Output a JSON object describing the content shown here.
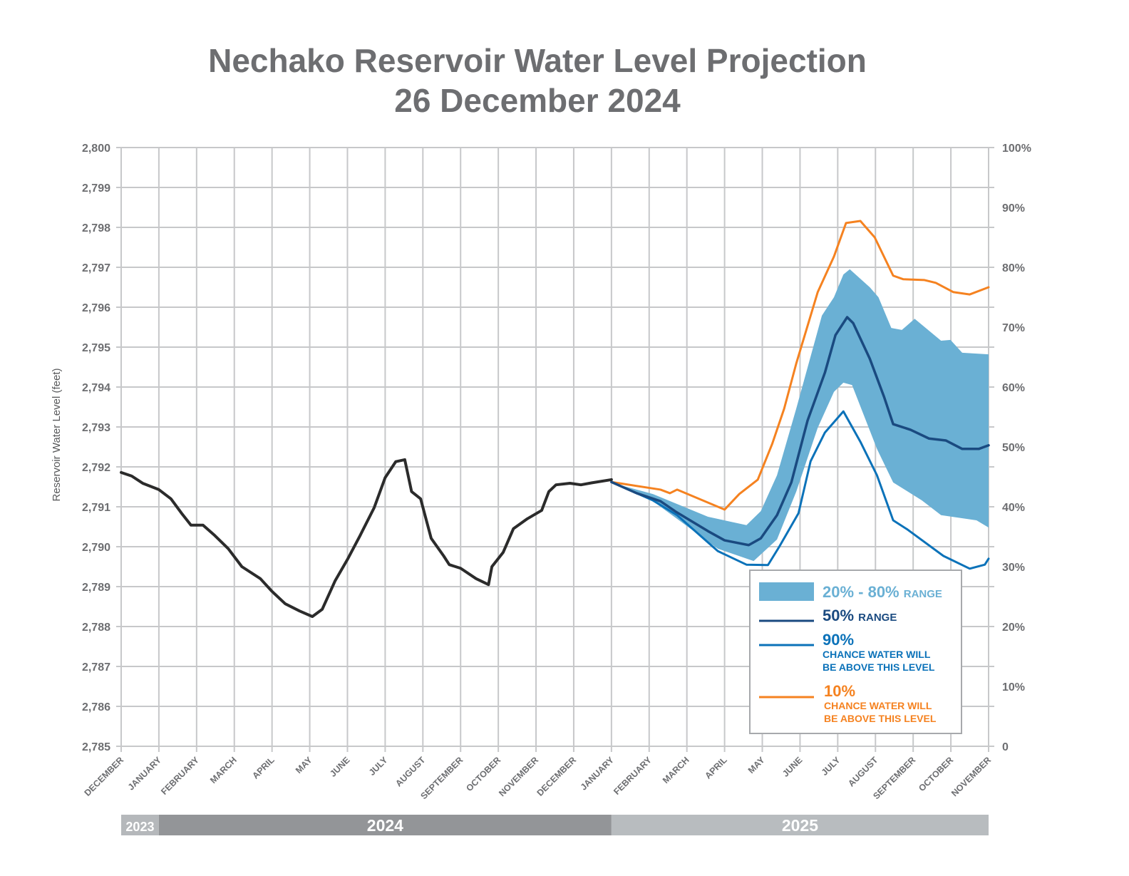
{
  "chart_data": {
    "type": "line",
    "title": "Nechako Reservoir Water Level Projection",
    "subtitle": "26 December 2024",
    "ylabel": "Reservoir Water Level (feet)",
    "ylim": [
      2785,
      2800
    ],
    "y_ticks": [
      "2,785",
      "2,786",
      "2,787",
      "2,788",
      "2,789",
      "2,790",
      "2,791",
      "2,792",
      "2,793",
      "2,794",
      "2,795",
      "2,796",
      "2,797",
      "2,798",
      "2,799",
      "2,800"
    ],
    "y2lim": [
      0,
      100
    ],
    "y2_ticks": [
      "0",
      "10%",
      "20%",
      "30%",
      "40%",
      "50%",
      "60%",
      "70%",
      "80%",
      "90%",
      "100%"
    ],
    "x_ticks": [
      "DECEMBER",
      "JANUARY",
      "FEBRUARY",
      "MARCH",
      "APRIL",
      "MAY",
      "JUNE",
      "JULY",
      "AUGUST",
      "SEPTEMBER",
      "OCTOBER",
      "NOVEMBER",
      "DECEMBER",
      "JANUARY",
      "FEBRUARY",
      "MARCH",
      "APRIL",
      "MAY",
      "JUNE",
      "JULY",
      "AUGUST",
      "SEPTEMBER",
      "OCTOBER",
      "NOVEMBER"
    ],
    "x_note": "x values are month positions: 0 = start of December 2023, 23 = start of November 2025",
    "years": [
      {
        "label": "2023",
        "from": 0,
        "to": 1,
        "color": "#b5b8bb"
      },
      {
        "label": "2024",
        "from": 1,
        "to": 13,
        "color": "#939598"
      },
      {
        "label": "2025",
        "from": 13,
        "to": 23,
        "color": "#b8bcbf"
      }
    ],
    "grid": true,
    "legend_placement": "bottom-right",
    "legend": [
      {
        "key": "band",
        "label": "20% - 80%",
        "suffix": "RANGE",
        "color": "#6ab0d4"
      },
      {
        "key": "p50",
        "label": "50%",
        "suffix": "RANGE",
        "color": "#1a4a80"
      },
      {
        "key": "p90",
        "label": "90%",
        "line1": "CHANCE WATER WILL",
        "line2": "BE ABOVE THIS LEVEL",
        "color": "#0b72b9"
      },
      {
        "key": "p10",
        "label": "10%",
        "line1": "CHANCE WATER WILL",
        "line2": "BE ABOVE THIS LEVEL",
        "color": "#f58220"
      }
    ],
    "series": [
      {
        "key": "historical",
        "color": "#2b2b2b",
        "x": [
          0,
          0.28,
          0.57,
          1,
          1.32,
          1.6,
          1.85,
          2.17,
          2.46,
          2.84,
          3.2,
          3.69,
          4,
          4.35,
          4.73,
          5.07,
          5.33,
          5.67,
          6,
          6.33,
          6.71,
          7,
          7.28,
          7.52,
          7.7,
          7.94,
          8.22,
          8.55,
          8.7,
          9,
          9.41,
          9.74,
          9.83,
          10.13,
          10.4,
          10.77,
          11.15,
          11.34,
          11.53,
          11.9,
          12.19,
          12.48,
          13
        ],
        "y": [
          2791.86,
          2791.77,
          2791.59,
          2791.43,
          2791.2,
          2790.84,
          2790.54,
          2790.54,
          2790.3,
          2789.95,
          2789.5,
          2789.2,
          2788.88,
          2788.57,
          2788.39,
          2788.25,
          2788.43,
          2789.14,
          2789.68,
          2790.27,
          2790.98,
          2791.73,
          2792.13,
          2792.18,
          2791.38,
          2791.2,
          2790.21,
          2789.77,
          2789.55,
          2789.46,
          2789.2,
          2789.05,
          2789.5,
          2789.86,
          2790.45,
          2790.7,
          2790.91,
          2791.38,
          2791.55,
          2791.59,
          2791.55,
          2791.6,
          2791.68
        ]
      },
      {
        "key": "band_upper",
        "x": [
          13,
          14.1,
          15.56,
          16.58,
          16.96,
          17.39,
          17.9,
          18.58,
          18.9,
          19.15,
          19.32,
          19.85,
          20.08,
          20.42,
          20.7,
          21.04,
          21.74,
          21.99,
          22.3,
          23
        ],
        "y": [
          2791.6,
          2791.32,
          2790.75,
          2790.54,
          2790.89,
          2791.79,
          2793.46,
          2795.79,
          2796.25,
          2796.82,
          2796.95,
          2796.5,
          2796.25,
          2795.48,
          2795.43,
          2795.71,
          2795.16,
          2795.18,
          2794.86,
          2794.82
        ]
      },
      {
        "key": "band_lower",
        "x": [
          13,
          14.1,
          15.82,
          16.77,
          17.39,
          17.9,
          18.47,
          18.9,
          19.15,
          19.38,
          20.04,
          20.47,
          21.23,
          21.74,
          22.68,
          23
        ],
        "y": [
          2791.6,
          2791.14,
          2789.95,
          2789.64,
          2790.18,
          2791.38,
          2792.98,
          2793.88,
          2794.11,
          2794.05,
          2792.45,
          2791.61,
          2791.16,
          2790.79,
          2790.66,
          2790.48
        ]
      },
      {
        "key": "p50",
        "color": "#1a4a80",
        "x": [
          13,
          13.67,
          14.3,
          14.7,
          15.56,
          16,
          16.64,
          16.96,
          17.39,
          17.77,
          18.2,
          18.66,
          18.94,
          19.25,
          19.41,
          19.85,
          20.23,
          20.47,
          20.93,
          21.42,
          21.87,
          22.3,
          22.74,
          23
        ],
        "y": [
          2791.62,
          2791.34,
          2791.14,
          2790.88,
          2790.39,
          2790.16,
          2790.04,
          2790.21,
          2790.79,
          2791.61,
          2793.16,
          2794.36,
          2795.3,
          2795.75,
          2795.6,
          2794.71,
          2793.75,
          2793.07,
          2792.93,
          2792.71,
          2792.66,
          2792.45,
          2792.45,
          2792.54
        ]
      },
      {
        "key": "p90",
        "color": "#0b72b9",
        "x": [
          13,
          14.1,
          14.74,
          15.82,
          16.58,
          17.15,
          17.45,
          17.96,
          18.28,
          18.66,
          19.15,
          19.6,
          20.04,
          20.47,
          20.85,
          21.8,
          22.5,
          22.9,
          23
        ],
        "y": [
          2791.62,
          2791.16,
          2790.79,
          2789.89,
          2789.55,
          2789.54,
          2790,
          2790.84,
          2792.14,
          2792.86,
          2793.39,
          2792.63,
          2791.79,
          2790.66,
          2790.43,
          2789.77,
          2789.45,
          2789.55,
          2789.7
        ]
      },
      {
        "key": "p10",
        "color": "#f58220",
        "x": [
          13,
          14.3,
          14.55,
          14.74,
          16,
          16.39,
          16.88,
          17.26,
          17.58,
          17.9,
          18.47,
          18.9,
          19.22,
          19.6,
          19.98,
          20.47,
          20.74,
          21.3,
          21.6,
          22.06,
          22.5,
          23
        ],
        "y": [
          2791.62,
          2791.43,
          2791.34,
          2791.43,
          2790.93,
          2791.32,
          2791.68,
          2792.57,
          2793.46,
          2794.59,
          2796.38,
          2797.27,
          2798.11,
          2798.16,
          2797.75,
          2796.79,
          2796.7,
          2796.68,
          2796.61,
          2796.38,
          2796.32,
          2796.5
        ]
      }
    ]
  }
}
